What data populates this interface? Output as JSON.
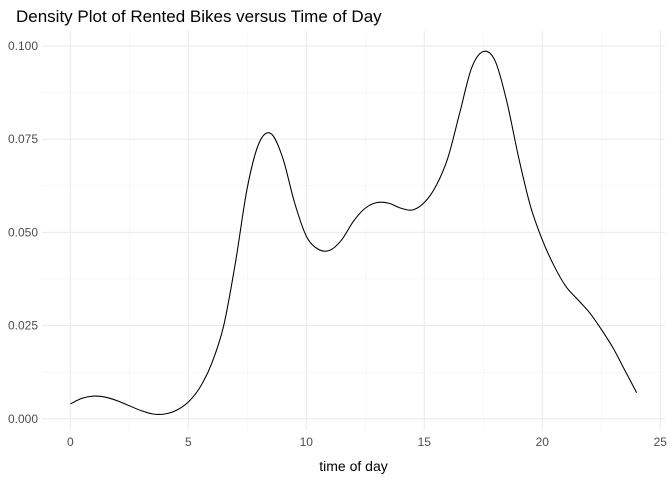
{
  "chart_data": {
    "type": "line",
    "title": "Density Plot of Rented Bikes versus Time of Day",
    "xlabel": "time of day",
    "ylabel": "",
    "xlim": [
      -1.2,
      25.2
    ],
    "ylim": [
      -0.003,
      0.104
    ],
    "x_ticks": [
      0,
      5,
      10,
      15,
      20,
      25
    ],
    "x_tick_labels": [
      "0",
      "5",
      "10",
      "15",
      "20",
      "25"
    ],
    "x_minor_ticks": [
      2.5,
      7.5,
      12.5,
      17.5,
      22.5
    ],
    "y_ticks": [
      0.0,
      0.025,
      0.05,
      0.075,
      0.1
    ],
    "y_tick_labels": [
      "0.000",
      "0.025",
      "0.050",
      "0.075",
      "0.100"
    ],
    "y_minor_ticks": [
      0.0125,
      0.0375,
      0.0625,
      0.0875
    ],
    "grid": true,
    "series": [
      {
        "color": "#000000",
        "x": [
          0,
          0.5,
          1,
          1.5,
          2,
          2.5,
          3,
          3.5,
          4,
          4.5,
          5,
          5.5,
          6,
          6.5,
          7,
          7.5,
          8,
          8.5,
          9,
          9.5,
          10,
          10.5,
          11,
          11.5,
          12,
          12.5,
          13,
          13.5,
          14,
          14.5,
          15,
          15.5,
          16,
          16.5,
          17,
          17.5,
          18,
          18.5,
          19,
          19.5,
          20,
          20.5,
          21,
          21.5,
          22,
          22.5,
          23,
          23.5,
          24
        ],
        "y": [
          0.004,
          0.0055,
          0.0061,
          0.0058,
          0.0048,
          0.0035,
          0.0022,
          0.0013,
          0.0013,
          0.0023,
          0.0045,
          0.0085,
          0.015,
          0.025,
          0.042,
          0.062,
          0.074,
          0.0765,
          0.07,
          0.058,
          0.049,
          0.0455,
          0.0452,
          0.048,
          0.053,
          0.0565,
          0.058,
          0.0578,
          0.0565,
          0.056,
          0.058,
          0.0625,
          0.07,
          0.082,
          0.094,
          0.0985,
          0.096,
          0.085,
          0.07,
          0.057,
          0.048,
          0.041,
          0.0355,
          0.032,
          0.0285,
          0.024,
          0.019,
          0.013,
          0.007
        ]
      }
    ]
  }
}
